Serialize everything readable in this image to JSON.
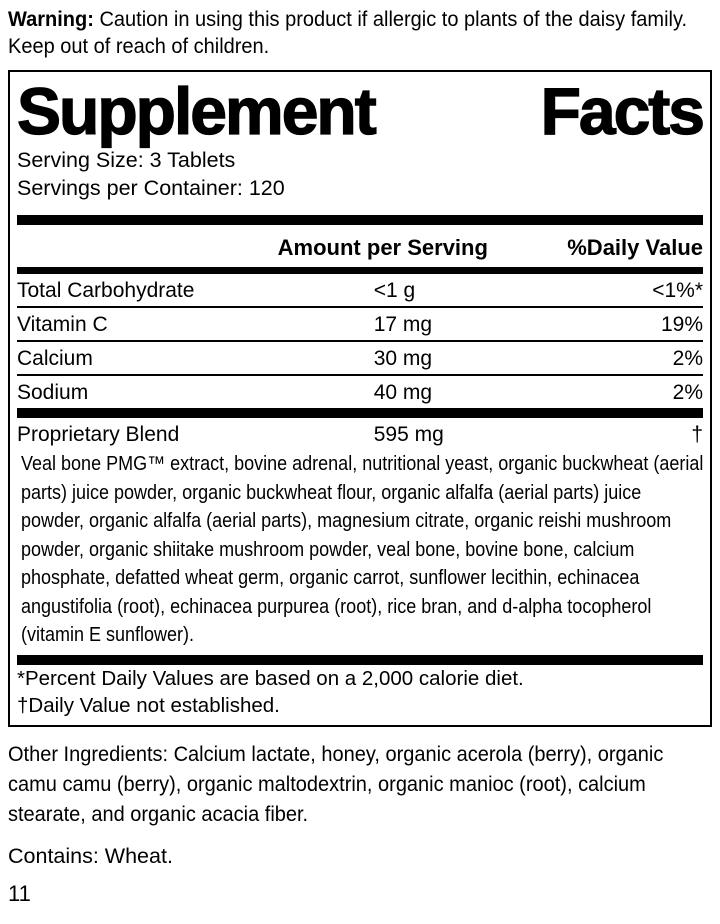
{
  "warning": {
    "label": "Warning:",
    "text": "Caution in using this product if allergic to plants of the daisy family. Keep out of reach of children."
  },
  "panel": {
    "title_word1": "Supplement",
    "title_word2": "Facts",
    "serving_size": "Serving Size: 3 Tablets",
    "servings_per_container": "Servings per Container: 120",
    "columns": {
      "amount": "Amount per Serving",
      "daily_value": "%Daily Value"
    },
    "rows": [
      {
        "name": "Total Carbohydrate",
        "amount": "<1 g",
        "dv": "<1%*"
      },
      {
        "name": "Vitamin C",
        "amount": "17 mg",
        "dv": "19%"
      },
      {
        "name": "Calcium",
        "amount": "30 mg",
        "dv": "2%"
      },
      {
        "name": "Sodium",
        "amount": "40 mg",
        "dv": "2%"
      }
    ],
    "proprietary": {
      "name": "Proprietary Blend",
      "amount": "595 mg",
      "dv": "†"
    },
    "blend_description": "Veal bone PMG™ extract, bovine adrenal, nutritional yeast, organic buckwheat (aerial parts) juice powder, organic buckwheat flour, organic alfalfa (aerial parts) juice powder, organic alfalfa (aerial parts), magnesium citrate, organic reishi mushroom powder, organic shiitake mushroom powder, veal bone, bovine bone, calcium phosphate, defatted wheat germ, organic carrot, sunflower lecithin, echinacea angustifolia (root), echinacea purpurea (root), rice bran, and d-alpha tocopherol (vitamin E sunflower).",
    "footnotes": [
      "*Percent Daily Values are based on a 2,000 calorie diet.",
      "†Daily Value not established."
    ]
  },
  "other_ingredients": "Other Ingredients: Calcium lactate, honey, organic acerola (berry), organic camu camu (berry), organic maltodextrin, organic manioc (root), calcium stearate, and organic acacia fiber.",
  "contains": "Contains: Wheat.",
  "page_number": "11"
}
